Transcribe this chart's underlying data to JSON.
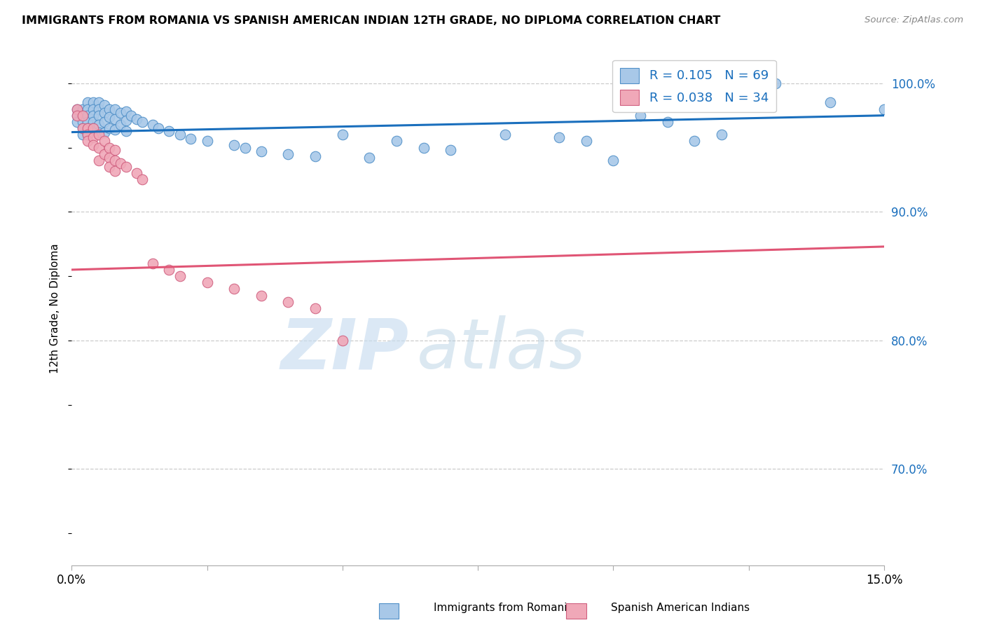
{
  "title": "IMMIGRANTS FROM ROMANIA VS SPANISH AMERICAN INDIAN 12TH GRADE, NO DIPLOMA CORRELATION CHART",
  "source": "Source: ZipAtlas.com",
  "ylabel": "12th Grade, No Diploma",
  "xlim": [
    0.0,
    0.15
  ],
  "ylim": [
    0.625,
    1.025
  ],
  "y_ticks_right": [
    0.7,
    0.8,
    0.9,
    1.0
  ],
  "y_tick_labels_right": [
    "70.0%",
    "80.0%",
    "90.0%",
    "100.0%"
  ],
  "blue_R": 0.105,
  "blue_N": 69,
  "pink_R": 0.038,
  "pink_N": 34,
  "blue_color": "#a8c8e8",
  "blue_edge_color": "#5090c8",
  "blue_line_color": "#1a6fbd",
  "pink_color": "#f0a8b8",
  "pink_edge_color": "#d06080",
  "pink_line_color": "#e05575",
  "legend_R_color": "#1a6fbd",
  "blue_scatter_x": [
    0.001,
    0.001,
    0.001,
    0.002,
    0.002,
    0.002,
    0.002,
    0.002,
    0.003,
    0.003,
    0.003,
    0.003,
    0.003,
    0.003,
    0.004,
    0.004,
    0.004,
    0.004,
    0.004,
    0.005,
    0.005,
    0.005,
    0.005,
    0.005,
    0.006,
    0.006,
    0.006,
    0.006,
    0.007,
    0.007,
    0.007,
    0.008,
    0.008,
    0.008,
    0.009,
    0.009,
    0.01,
    0.01,
    0.01,
    0.011,
    0.012,
    0.013,
    0.015,
    0.016,
    0.018,
    0.02,
    0.022,
    0.025,
    0.03,
    0.032,
    0.035,
    0.04,
    0.045,
    0.05,
    0.055,
    0.06,
    0.065,
    0.07,
    0.08,
    0.09,
    0.095,
    0.1,
    0.105,
    0.11,
    0.115,
    0.12,
    0.13,
    0.14,
    0.15
  ],
  "blue_scatter_y": [
    0.98,
    0.975,
    0.97,
    0.98,
    0.975,
    0.97,
    0.965,
    0.96,
    0.985,
    0.98,
    0.975,
    0.97,
    0.965,
    0.96,
    0.985,
    0.98,
    0.975,
    0.97,
    0.965,
    0.985,
    0.98,
    0.975,
    0.968,
    0.962,
    0.983,
    0.977,
    0.97,
    0.962,
    0.98,
    0.974,
    0.965,
    0.98,
    0.972,
    0.964,
    0.977,
    0.968,
    0.978,
    0.971,
    0.963,
    0.975,
    0.972,
    0.97,
    0.968,
    0.965,
    0.963,
    0.96,
    0.957,
    0.955,
    0.952,
    0.95,
    0.947,
    0.945,
    0.943,
    0.96,
    0.942,
    0.955,
    0.95,
    0.948,
    0.96,
    0.958,
    0.955,
    0.94,
    0.975,
    0.97,
    0.955,
    0.96,
    1.0,
    0.985,
    0.98
  ],
  "pink_scatter_x": [
    0.001,
    0.001,
    0.002,
    0.002,
    0.003,
    0.003,
    0.003,
    0.004,
    0.004,
    0.004,
    0.005,
    0.005,
    0.005,
    0.006,
    0.006,
    0.007,
    0.007,
    0.007,
    0.008,
    0.008,
    0.008,
    0.009,
    0.01,
    0.012,
    0.013,
    0.015,
    0.018,
    0.02,
    0.025,
    0.03,
    0.035,
    0.04,
    0.045,
    0.05
  ],
  "pink_scatter_y": [
    0.98,
    0.975,
    0.975,
    0.965,
    0.965,
    0.96,
    0.955,
    0.965,
    0.958,
    0.952,
    0.96,
    0.95,
    0.94,
    0.955,
    0.945,
    0.95,
    0.942,
    0.935,
    0.948,
    0.94,
    0.932,
    0.938,
    0.935,
    0.93,
    0.925,
    0.86,
    0.855,
    0.85,
    0.845,
    0.84,
    0.835,
    0.83,
    0.825,
    0.8
  ],
  "blue_line_x0": 0.0,
  "blue_line_x1": 0.15,
  "blue_line_y0": 0.962,
  "blue_line_y1": 0.975,
  "pink_line_x0": 0.0,
  "pink_line_x1": 0.15,
  "pink_line_y0": 0.855,
  "pink_line_y1": 0.873
}
